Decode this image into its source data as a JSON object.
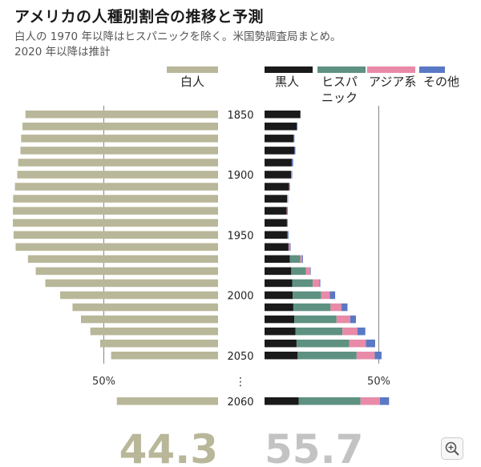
{
  "header": {
    "title": "アメリカの人種別割合の推移と予測",
    "subtitle": "白人の 1970 年以降はヒスパニックを除く。米国勢調査局まとめ。\n2020 年以降は推計"
  },
  "zoom_button": {
    "icon": "zoom-in-icon"
  },
  "chart_data": {
    "type": "bar",
    "subtype": "diverging-stacked-horizontal",
    "years": [
      1850,
      1860,
      1870,
      1880,
      1890,
      1900,
      1910,
      1920,
      1930,
      1940,
      1950,
      1960,
      1970,
      1980,
      1990,
      2000,
      2010,
      2020,
      2030,
      2040,
      2050
    ],
    "year_tick_labels": [
      "1850",
      "1900",
      "1950",
      "2000",
      "2050"
    ],
    "gap_marker": "⋮",
    "projection_year_label": "2060",
    "left_axis_label": "50%",
    "right_axis_label": "50%",
    "xlim_percent": [
      0,
      100
    ],
    "series": [
      {
        "name": "白人",
        "side": "left",
        "color": "#b9b799",
        "values": [
          84.3,
          85.6,
          86.2,
          86.5,
          87.5,
          87.9,
          88.9,
          89.7,
          89.8,
          89.8,
          89.5,
          88.6,
          83.2,
          79.8,
          75.6,
          69.1,
          63.7,
          60.0,
          55.9,
          51.6,
          46.8
        ]
      },
      {
        "name": "黒人",
        "side": "right",
        "color": "#1a1a1a",
        "values": [
          15.7,
          14.1,
          12.7,
          13.1,
          11.9,
          11.6,
          10.7,
          9.9,
          9.7,
          9.8,
          10.0,
          10.5,
          11.1,
          11.7,
          12.1,
          12.3,
          12.6,
          13.0,
          13.5,
          14.0,
          14.5
        ]
      },
      {
        "name": "ヒスパニック",
        "side": "right",
        "color": "#5e9181",
        "values": [
          0,
          0,
          0,
          0,
          0,
          0,
          0,
          0,
          0,
          0,
          0,
          0,
          4.5,
          6.4,
          9.0,
          12.5,
          16.3,
          18.5,
          20.6,
          23.0,
          25.8
        ]
      },
      {
        "name": "アジア系",
        "side": "right",
        "color": "#e88aa8",
        "values": [
          0,
          0,
          0,
          0,
          0,
          0.2,
          0.2,
          0.2,
          0.2,
          0.2,
          0.2,
          0.5,
          0.8,
          1.8,
          2.9,
          3.8,
          4.8,
          6.0,
          6.6,
          7.4,
          7.9
        ]
      },
      {
        "name": "その他",
        "side": "right",
        "color": "#5a78c4",
        "values": [
          0,
          0.3,
          0.4,
          0.4,
          0.6,
          0.3,
          0.2,
          0.2,
          0.3,
          0.2,
          0.3,
          0.4,
          0.4,
          0.3,
          0.4,
          2.3,
          2.6,
          2.5,
          3.4,
          4.0,
          3.0
        ]
      }
    ],
    "projection_2060": {
      "white": 44.3,
      "black": 15.0,
      "hispanic": 27.0,
      "asian": 8.5,
      "other": 4.0
    },
    "totals": {
      "left": "44.3",
      "right": "55.7"
    }
  }
}
